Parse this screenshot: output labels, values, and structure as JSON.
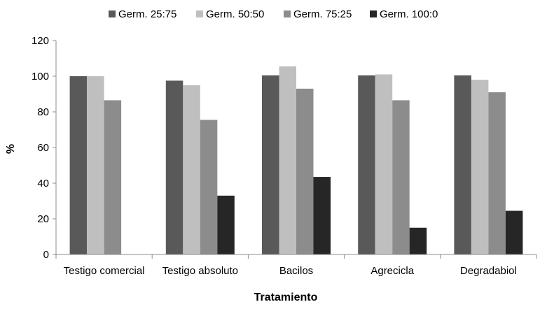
{
  "chart_data": {
    "type": "bar",
    "title": "",
    "xlabel": "Tratamiento",
    "ylabel": "%",
    "ylim": [
      0,
      120
    ],
    "yticks": [
      0,
      20,
      40,
      60,
      80,
      100,
      120
    ],
    "grid": false,
    "legend_position": "top",
    "categories": [
      "Testigo comercial",
      "Testigo absoluto",
      "Bacilos",
      "Agrecicla",
      "Degradabiol"
    ],
    "series": [
      {
        "name": "Germ. 25:75",
        "color": "#595959",
        "values": [
          100,
          97.5,
          100.5,
          100.5,
          100.5
        ]
      },
      {
        "name": "Germ. 50:50",
        "color": "#bfbfbf",
        "values": [
          100,
          95,
          105.5,
          101,
          98
        ]
      },
      {
        "name": "Germ. 75:25",
        "color": "#8c8c8c",
        "values": [
          86.5,
          75.5,
          93,
          86.5,
          91
        ]
      },
      {
        "name": "Germ. 100:0",
        "color": "#262626",
        "values": [
          null,
          33,
          43.5,
          15,
          24.5
        ]
      }
    ]
  }
}
